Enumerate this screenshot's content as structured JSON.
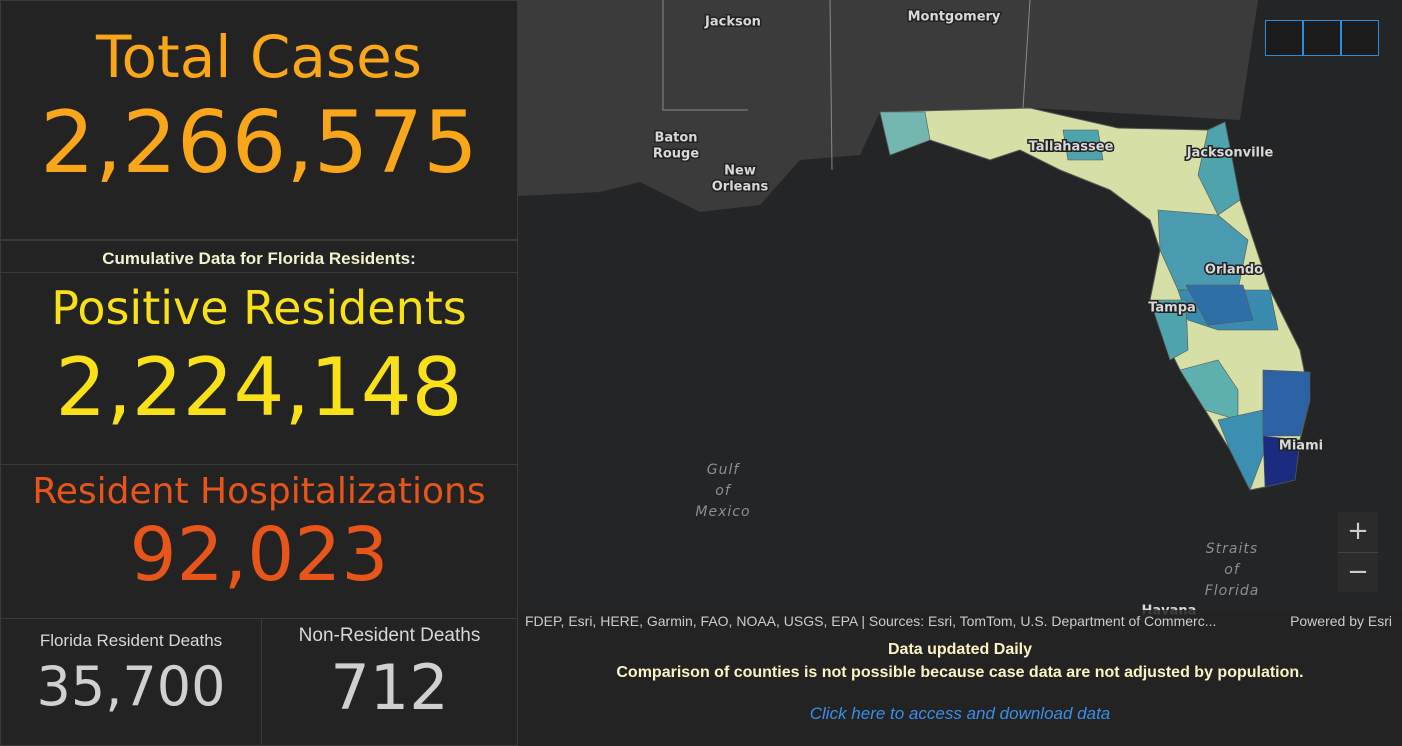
{
  "stats": {
    "total_cases": {
      "label": "Total Cases",
      "value": "2,266,575"
    },
    "cumulative_note": "Cumulative Data for Florida Residents:",
    "positive_residents": {
      "label": "Positive Residents",
      "value": "2,224,148"
    },
    "hospitalizations": {
      "label": "Resident Hospitalizations",
      "value": "92,023"
    },
    "resident_deaths": {
      "label": "Florida Resident Deaths",
      "value": "35,700"
    },
    "non_resident_deaths": {
      "label": "Non-Resident Deaths",
      "value": "712"
    }
  },
  "map": {
    "labels": {
      "jackson": [
        "Jackson"
      ],
      "montgomery": [
        "Montgomery"
      ],
      "baton_rouge": [
        "Baton",
        "Rouge"
      ],
      "new_orleans": [
        "New",
        "Orleans"
      ],
      "tallahassee": [
        "Tallahassee"
      ],
      "jacksonville": [
        "Jacksonville"
      ],
      "orlando": [
        "Orlando"
      ],
      "tampa": [
        "Tampa"
      ],
      "miami": [
        "Miami"
      ],
      "gulf": [
        "Gulf",
        "of",
        "Mexico"
      ],
      "straits": [
        "Straits",
        "of",
        "Florida"
      ],
      "havana": [
        "Havana"
      ]
    },
    "attribution": "FDEP, Esri, HERE, Garmin, FAO, NOAA, USGS, EPA | Sources: Esri, TomTom, U.S. Department of Commerc...",
    "powered_by": "Powered by Esri",
    "zoom_in": "+",
    "zoom_out": "−"
  },
  "footer": {
    "line1": "Data updated Daily",
    "line2": "Comparison of counties is not possible because case data are not adjusted by population.",
    "link": "Click here to access and download data"
  }
}
